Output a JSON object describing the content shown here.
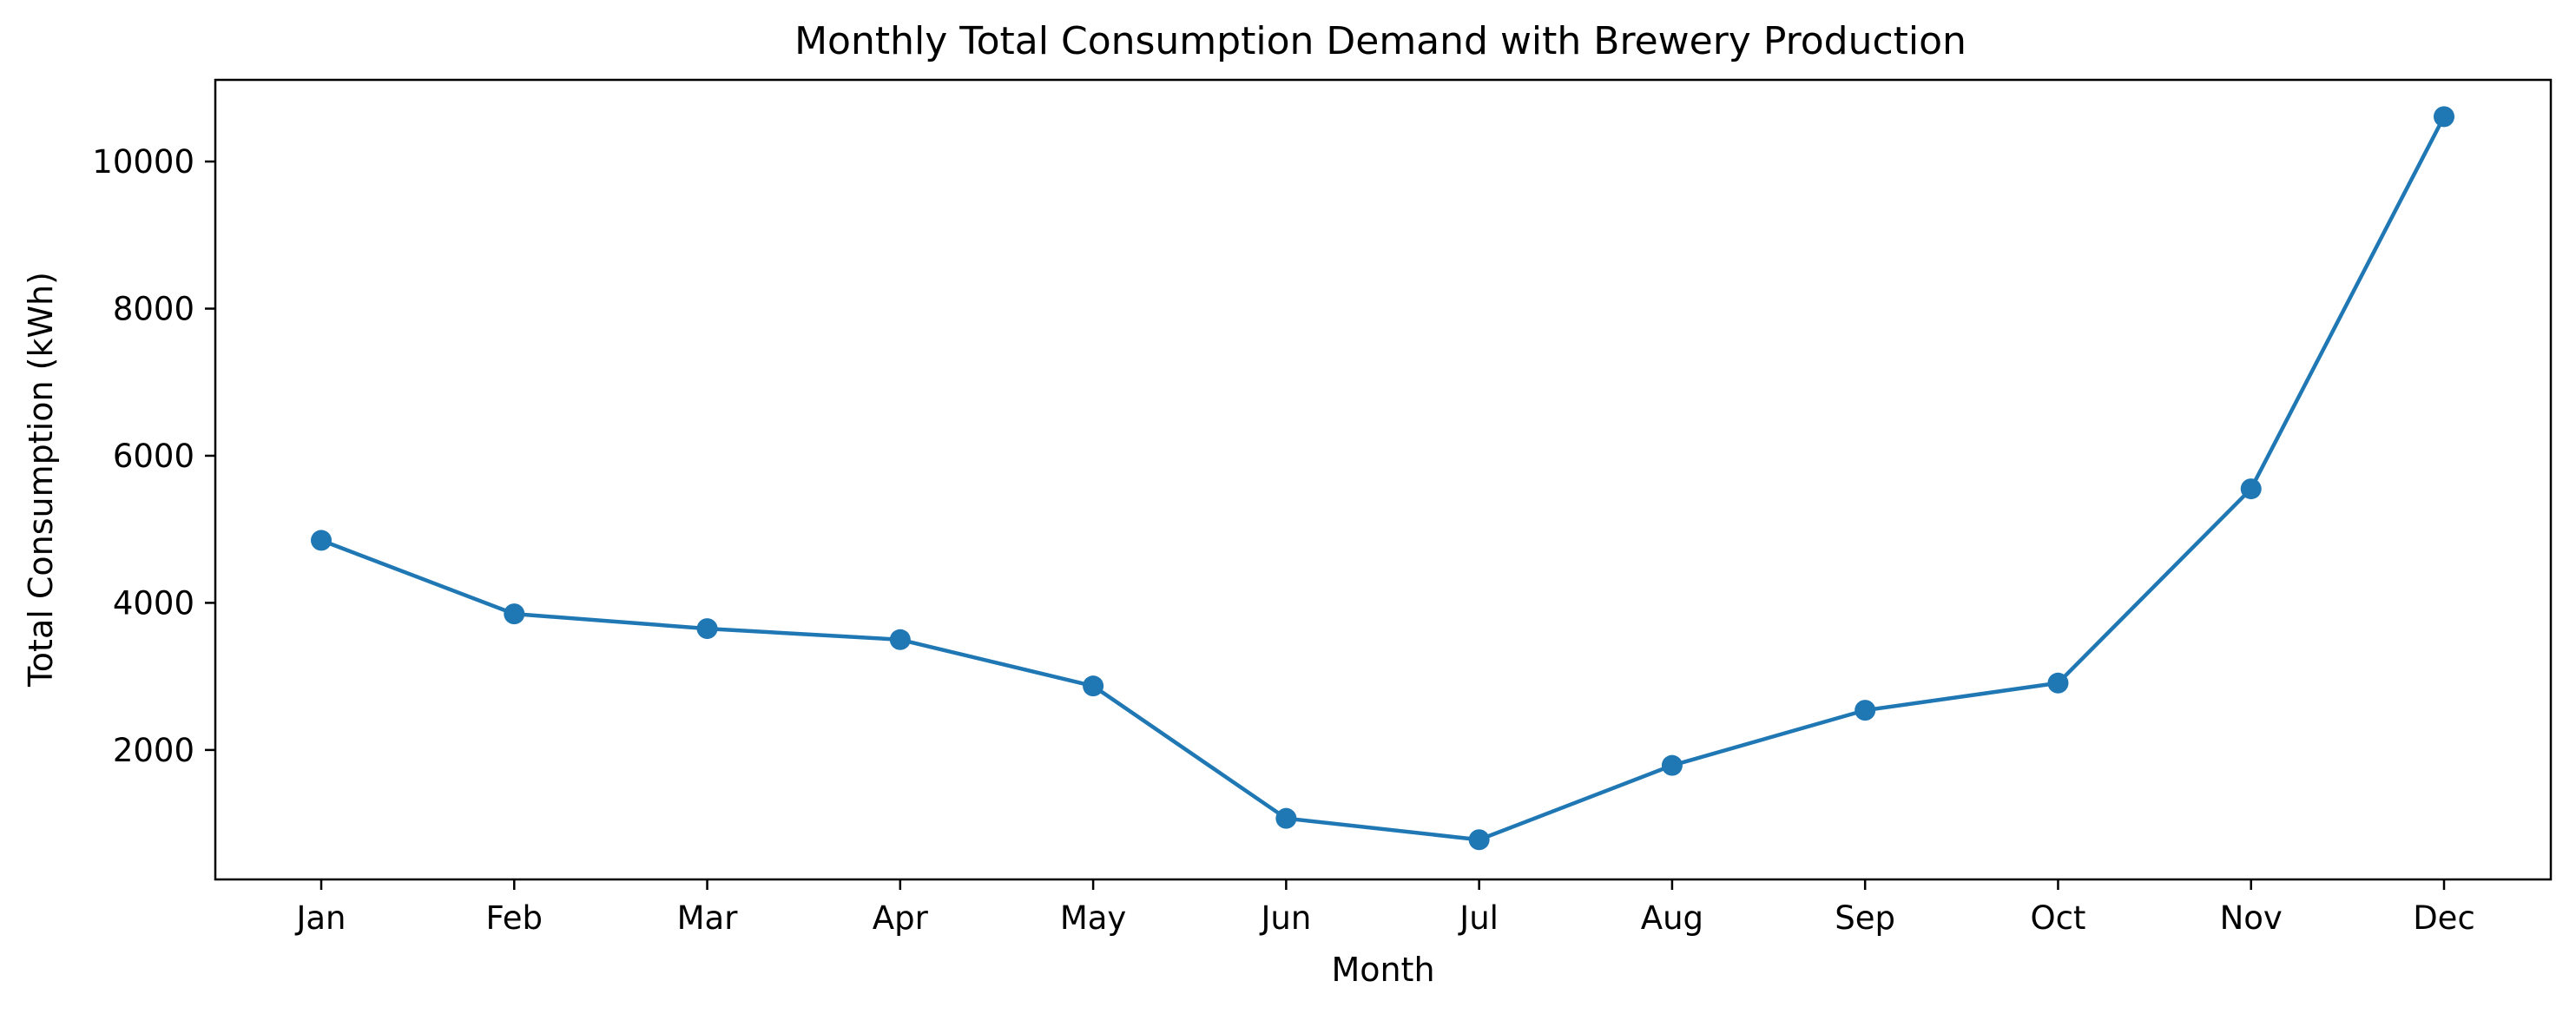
{
  "chart_data": {
    "type": "line",
    "title": "Monthly Total Consumption Demand with Brewery Production",
    "xlabel": "Month",
    "ylabel": "Total Consumption (kWh)",
    "categories": [
      "Jan",
      "Feb",
      "Mar",
      "Apr",
      "May",
      "Jun",
      "Jul",
      "Aug",
      "Sep",
      "Oct",
      "Nov",
      "Dec"
    ],
    "series": [
      {
        "values": [
          4850,
          3850,
          3650,
          3500,
          2870,
          1070,
          780,
          1790,
          2540,
          2910,
          5550,
          10610
        ],
        "color": "#1f77b4",
        "marker": "circle"
      }
    ],
    "ylim": [
      240,
      11110
    ],
    "yticks": [
      2000,
      4000,
      6000,
      8000,
      10000
    ],
    "grid": false,
    "legend": "none"
  }
}
